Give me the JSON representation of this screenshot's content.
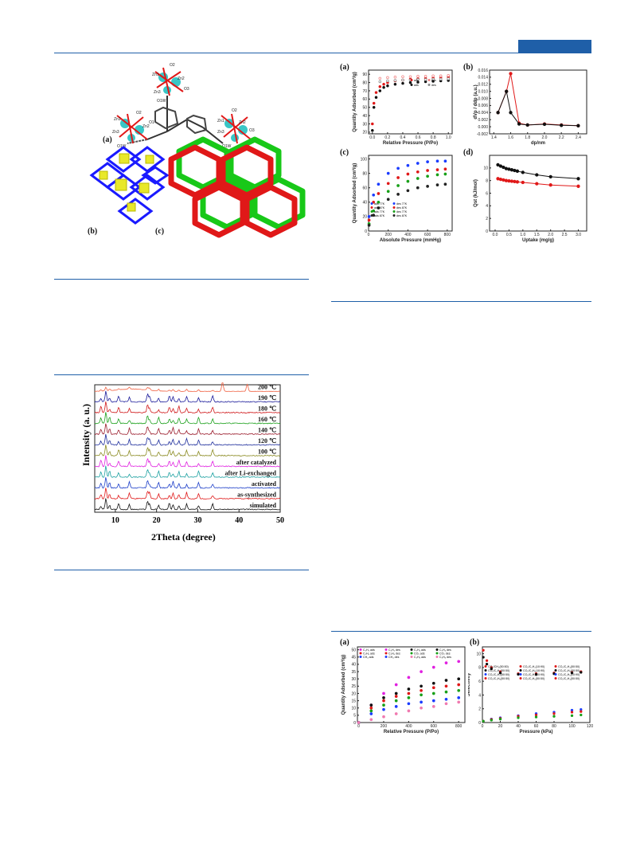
{
  "header": {
    "accent_color": "#1f5fa8"
  },
  "fig_structure": {
    "labels": {
      "a": "(a)",
      "b": "(b)",
      "c": "(c)"
    },
    "atoms": [
      "O2",
      "Zn1",
      "Zn2",
      "O3",
      "Zn3",
      "O1W",
      "O2",
      "Zn1",
      "Zn2",
      "O3",
      "Zn3",
      "O1W",
      "O2",
      "Zn1",
      "Zn2",
      "O3",
      "Zn3",
      "O1W",
      "O1"
    ]
  },
  "fig_pxrd": {
    "chart_data": {
      "type": "line",
      "xlabel": "2Theta (degree)",
      "ylabel": "Intensity (a. u.)",
      "xlim": [
        5,
        50
      ],
      "xticks": [
        10,
        20,
        30,
        40,
        50
      ],
      "series": [
        {
          "name": "simulated",
          "color": "#111111"
        },
        {
          "name": "as-synthesized",
          "color": "#e01818"
        },
        {
          "name": "activated",
          "color": "#1a3cc8"
        },
        {
          "name": "after Li-exchanged",
          "color": "#1aa0a0"
        },
        {
          "name": "after catalyzed",
          "color": "#e020e0"
        },
        {
          "name": "100 ℃",
          "color": "#8a8a20"
        },
        {
          "name": "120 ℃",
          "color": "#1a2a9a"
        },
        {
          "name": "140 ℃",
          "color": "#9a1a2a"
        },
        {
          "name": "160 ℃",
          "color": "#1aa01a"
        },
        {
          "name": "180 ℃",
          "color": "#d0181a"
        },
        {
          "name": "190 ℃",
          "color": "#1a1a9a"
        },
        {
          "name": "200 ℃",
          "color": "#f06040"
        }
      ]
    }
  },
  "fig_sorption": {
    "a": {
      "tag": "(a)",
      "chart_data": {
        "type": "scatter",
        "xlabel": "Relative Pressure (P/Po)",
        "ylabel": "Quantity Adsorbed (cm³/g)",
        "xticks": [
          "0.0",
          "0.2",
          "0.4",
          "0.6",
          "0.8",
          "1.0"
        ],
        "yticks": [
          "20",
          "30",
          "40",
          "50",
          "60",
          "70",
          "80",
          "90"
        ],
        "legend": [
          "ads",
          "des",
          "ads",
          "des"
        ],
        "series": [
          {
            "name": "ads (red)",
            "color": "#e01818",
            "x": [
              0.0,
              0.02,
              0.05,
              0.1,
              0.15,
              0.2,
              0.3,
              0.4,
              0.5,
              0.6,
              0.7,
              0.8,
              0.9,
              1.0
            ],
            "y": [
              30,
              55,
              68,
              75,
              78,
              80,
              82,
              83,
              84,
              84.5,
              85,
              85.5,
              86,
              86.5
            ]
          },
          {
            "name": "des (red)",
            "color": "#f08080",
            "x": [
              0.1,
              0.2,
              0.3,
              0.4,
              0.5,
              0.6,
              0.7,
              0.8,
              0.9,
              1.0
            ],
            "y": [
              85,
              86,
              86.5,
              87,
              87,
              87.5,
              87.5,
              88,
              88,
              88.5
            ]
          },
          {
            "name": "ads (black)",
            "color": "#111111",
            "x": [
              0.0,
              0.02,
              0.05,
              0.1,
              0.15,
              0.2,
              0.3,
              0.4,
              0.5,
              0.6,
              0.7,
              0.8,
              0.9,
              1.0
            ],
            "y": [
              22,
              50,
              62,
              70,
              74,
              76,
              78,
              79,
              80,
              80.5,
              81,
              81.5,
              82,
              82.5
            ]
          },
          {
            "name": "des (black)",
            "color": "#888888",
            "x": [
              0.1,
              0.2,
              0.3,
              0.4,
              0.5,
              0.6,
              0.7,
              0.8,
              0.9,
              1.0
            ],
            "y": [
              81,
              82,
              82.5,
              83,
              83,
              83.5,
              83.5,
              84,
              84,
              84.5
            ]
          }
        ]
      }
    },
    "b": {
      "tag": "(b)",
      "chart_data": {
        "type": "line",
        "xlabel": "dp/nm",
        "ylabel": "dVp / ddp (a.u.)",
        "xticks": [
          "1.4",
          "1.6",
          "1.8",
          "2.0",
          "2.2",
          "2.4"
        ],
        "yticks": [
          "-0.002",
          "0.000",
          "0.002",
          "0.004",
          "0.006",
          "0.008",
          "0.010",
          "0.012",
          "0.014",
          "0.016"
        ],
        "series": [
          {
            "name": "red",
            "color": "#e01818",
            "x": [
              1.45,
              1.55,
              1.6,
              1.7,
              1.8,
              2.0,
              2.2,
              2.4
            ],
            "y": [
              0.004,
              0.01,
              0.015,
              0.001,
              0.0005,
              0.0008,
              0.0005,
              0.0003
            ]
          },
          {
            "name": "black",
            "color": "#111111",
            "x": [
              1.45,
              1.55,
              1.6,
              1.7,
              1.8,
              2.0,
              2.2,
              2.4
            ],
            "y": [
              0.004,
              0.01,
              0.004,
              0.0008,
              0.0005,
              0.0007,
              0.0004,
              0.0003
            ]
          }
        ]
      }
    },
    "c": {
      "tag": "(c)",
      "chart_data": {
        "type": "scatter",
        "xlabel": "Absolute Pressure (mmHg)",
        "ylabel": "Quantity Adsorbed (cm³/g)",
        "xticks": [
          "0",
          "200",
          "400",
          "600",
          "800"
        ],
        "yticks": [
          "0",
          "20",
          "40",
          "60",
          "80",
          "100"
        ],
        "legend": [
          "ads 77K",
          "des 77K",
          "ads 87K",
          "des 87K",
          "ads 77K",
          "des 77K",
          "ads 87K",
          "des 87K"
        ],
        "series": [
          {
            "name": "blue",
            "color": "#1a3cff",
            "x": [
              5,
              50,
              100,
              200,
              300,
              400,
              500,
              600,
              700,
              780
            ],
            "y": [
              20,
              50,
              65,
              80,
              87,
              91,
              94,
              96,
              97,
              97
            ]
          },
          {
            "name": "red",
            "color": "#e01818",
            "x": [
              5,
              50,
              100,
              200,
              300,
              400,
              500,
              600,
              700,
              780
            ],
            "y": [
              15,
              40,
              52,
              66,
              74,
              79,
              82,
              84,
              85,
              86
            ]
          },
          {
            "name": "green",
            "color": "#18a018",
            "x": [
              5,
              50,
              100,
              200,
              300,
              400,
              500,
              600,
              700,
              780
            ],
            "y": [
              10,
              28,
              40,
              55,
              63,
              69,
              73,
              76,
              78,
              79
            ]
          },
          {
            "name": "black",
            "color": "#222222",
            "x": [
              5,
              50,
              100,
              200,
              300,
              400,
              500,
              600,
              700,
              780
            ],
            "y": [
              8,
              22,
              32,
              44,
              51,
              56,
              60,
              62,
              64,
              65
            ]
          }
        ]
      }
    },
    "d": {
      "tag": "(d)",
      "chart_data": {
        "type": "scatter",
        "xlabel": "Uptake (mg/g)",
        "ylabel": "Qst (kJ/mol)",
        "xticks": [
          "0.0",
          "0.5",
          "1.0",
          "1.5",
          "2.0",
          "2.5",
          "3.0"
        ],
        "yticks": [
          "0",
          "2",
          "4",
          "6",
          "8",
          "10"
        ],
        "series": [
          {
            "name": "black",
            "color": "#111111",
            "x": [
              0.1,
              0.2,
              0.3,
              0.4,
              0.5,
              0.6,
              0.7,
              0.8,
              1.0,
              1.5,
              2.0,
              3.0
            ],
            "y": [
              10.5,
              10.3,
              10.1,
              9.9,
              9.8,
              9.7,
              9.6,
              9.5,
              9.3,
              8.9,
              8.6,
              8.3
            ]
          },
          {
            "name": "red",
            "color": "#e01818",
            "x": [
              0.1,
              0.2,
              0.3,
              0.4,
              0.5,
              0.6,
              0.7,
              0.8,
              1.0,
              1.5,
              2.0,
              3.0
            ],
            "y": [
              8.3,
              8.2,
              8.1,
              8.0,
              7.95,
              7.9,
              7.85,
              7.8,
              7.7,
              7.5,
              7.3,
              7.1
            ]
          }
        ]
      }
    }
  },
  "fig_gas": {
    "a": {
      "tag": "(a)",
      "chart_data": {
        "type": "line",
        "xlabel": "Relative Pressure (P/Po)",
        "ylabel": "Quantity Adsorbed (cm³/g)",
        "xticks": [
          "0",
          "200",
          "400",
          "600",
          "800"
        ],
        "yticks": [
          "0",
          "5",
          "10",
          "15",
          "20",
          "25",
          "30",
          "35",
          "40",
          "45",
          "50"
        ],
        "legend": [
          "C₂H₂ ads",
          "C₂H₂ des",
          "C₂H₄ ads",
          "C₂H₄ des",
          "C₂H₆ ads",
          "C₂H₆ des",
          "CO₂ ads",
          "CO₂ des",
          "CH₄ ads",
          "CH₄ des",
          "C₃H₈ ads",
          "C₃H₈ des"
        ],
        "series": [
          {
            "name": "magenta",
            "color": "#e020e0",
            "x": [
              0,
              100,
              200,
              300,
              400,
              500,
              600,
              700,
              800
            ],
            "y": [
              0,
              12,
              20,
              26,
              31,
              35,
              38,
              41,
              42
            ]
          },
          {
            "name": "black",
            "color": "#111111",
            "x": [
              0,
              100,
              200,
              300,
              400,
              500,
              600,
              700,
              800
            ],
            "y": [
              0,
              12,
              17,
              20,
              23,
              25,
              27,
              29,
              30
            ]
          },
          {
            "name": "red",
            "color": "#e01818",
            "x": [
              0,
              100,
              200,
              300,
              400,
              500,
              600,
              700,
              800
            ],
            "y": [
              0,
              10,
              15,
              18,
              20,
              22,
              24,
              25,
              26
            ]
          },
          {
            "name": "green",
            "color": "#18a018",
            "x": [
              0,
              100,
              200,
              300,
              400,
              500,
              600,
              700,
              800
            ],
            "y": [
              0,
              8,
              12,
              15,
              17,
              19,
              20,
              21,
              22
            ]
          },
          {
            "name": "blue",
            "color": "#1a3cff",
            "x": [
              0,
              100,
              200,
              300,
              400,
              500,
              600,
              700,
              800
            ],
            "y": [
              0,
              6,
              9,
              11,
              13,
              14,
              15,
              16,
              17
            ]
          },
          {
            "name": "pink",
            "color": "#f07ab0",
            "x": [
              0,
              100,
              200,
              300,
              400,
              500,
              600,
              700,
              800
            ],
            "y": [
              0,
              2,
              4,
              6,
              8,
              10,
              11,
              13,
              14
            ]
          }
        ]
      }
    },
    "b": {
      "tag": "(b)",
      "chart_data": {
        "type": "line",
        "xlabel": "Pressure (kPa)",
        "ylabel": "Selectivity",
        "xticks": [
          "0",
          "20",
          "40",
          "60",
          "80",
          "100",
          "120"
        ],
        "yticks": [
          "0",
          "2",
          "4",
          "6",
          "8",
          "10"
        ],
        "legend": [
          "CO₂/CH₄(50:50)",
          "CO₂/C₂H₂(10:90)",
          "CO₂/C₂H₄(50:50)",
          "CO₂/C₂H₆(50:50)",
          "CO₂/C₃H₈(10:90)",
          "CO₂/C₃H₈(50:50)",
          "CO₂/C₂H₂(50:50)",
          "CO₂/C₂H₄(10:90)",
          "CO₂/C₂H₆(10:90)",
          "CO₂/C₃H₈(50:50)",
          "CO₂/C₂H₆(50:50)",
          "CO₂/C₂H₄(50:50)"
        ],
        "series": [
          {
            "name": "red-high",
            "color": "#e01818",
            "x": [
              1,
              5,
              10,
              20,
              40,
              60,
              80,
              100,
              110
            ],
            "y": [
              10.5,
              9,
              8,
              7.4,
              7.1,
              7.1,
              7.2,
              7.3,
              7.4
            ]
          },
          {
            "name": "black-high",
            "color": "#111111",
            "x": [
              1,
              5,
              10,
              20,
              40,
              60,
              80,
              100,
              110
            ],
            "y": [
              9.5,
              8.5,
              7.8,
              7.2,
              7.0,
              7.0,
              7.1,
              7.2,
              7.3
            ]
          },
          {
            "name": "blue-low",
            "color": "#1a3cff",
            "x": [
              1,
              10,
              20,
              40,
              60,
              80,
              100,
              110
            ],
            "y": [
              0.2,
              0.5,
              0.7,
              1.0,
              1.3,
              1.5,
              1.8,
              1.9
            ]
          },
          {
            "name": "red-low",
            "color": "#e01818",
            "x": [
              1,
              10,
              20,
              40,
              60,
              80,
              100,
              110
            ],
            "y": [
              0.2,
              0.45,
              0.6,
              0.9,
              1.1,
              1.3,
              1.5,
              1.6
            ]
          },
          {
            "name": "green-low",
            "color": "#18a018",
            "x": [
              1,
              10,
              20,
              40,
              60,
              80,
              100,
              110
            ],
            "y": [
              0.2,
              0.35,
              0.5,
              0.7,
              0.8,
              0.9,
              1.0,
              1.1
            ]
          }
        ]
      }
    }
  }
}
